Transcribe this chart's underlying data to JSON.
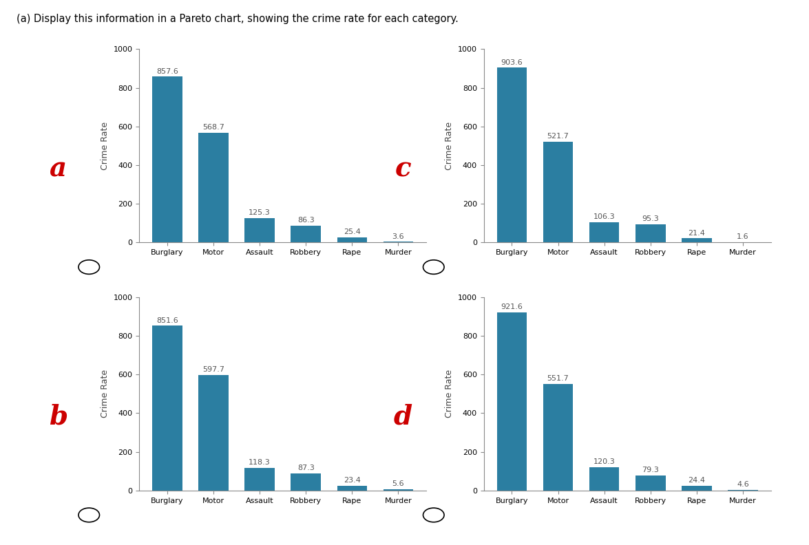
{
  "title": "(a) Display this information in a Pareto chart, showing the crime rate for each category.",
  "categories": [
    "Burglary",
    "Motor",
    "Assault",
    "Robbery",
    "Rape",
    "Murder"
  ],
  "subplots": [
    {
      "label": "a",
      "values": [
        857.6,
        568.7,
        125.3,
        86.3,
        25.4,
        3.6
      ]
    },
    {
      "label": "c",
      "values": [
        903.6,
        521.7,
        106.3,
        95.3,
        21.4,
        1.6
      ]
    },
    {
      "label": "b",
      "values": [
        851.6,
        597.7,
        118.3,
        87.3,
        23.4,
        5.6
      ]
    },
    {
      "label": "d",
      "values": [
        921.6,
        551.7,
        120.3,
        79.3,
        24.4,
        4.6
      ]
    }
  ],
  "bar_color": "#2b7ea1",
  "ylabel": "Crime Rate",
  "ylim": [
    0,
    1000
  ],
  "yticks": [
    0,
    200,
    400,
    600,
    800,
    1000
  ],
  "label_color_red": "#cc0000",
  "label_fontsize": 28,
  "bar_value_fontsize": 8,
  "axis_label_fontsize": 9,
  "tick_fontsize": 8,
  "ylabel_fontsize": 9
}
